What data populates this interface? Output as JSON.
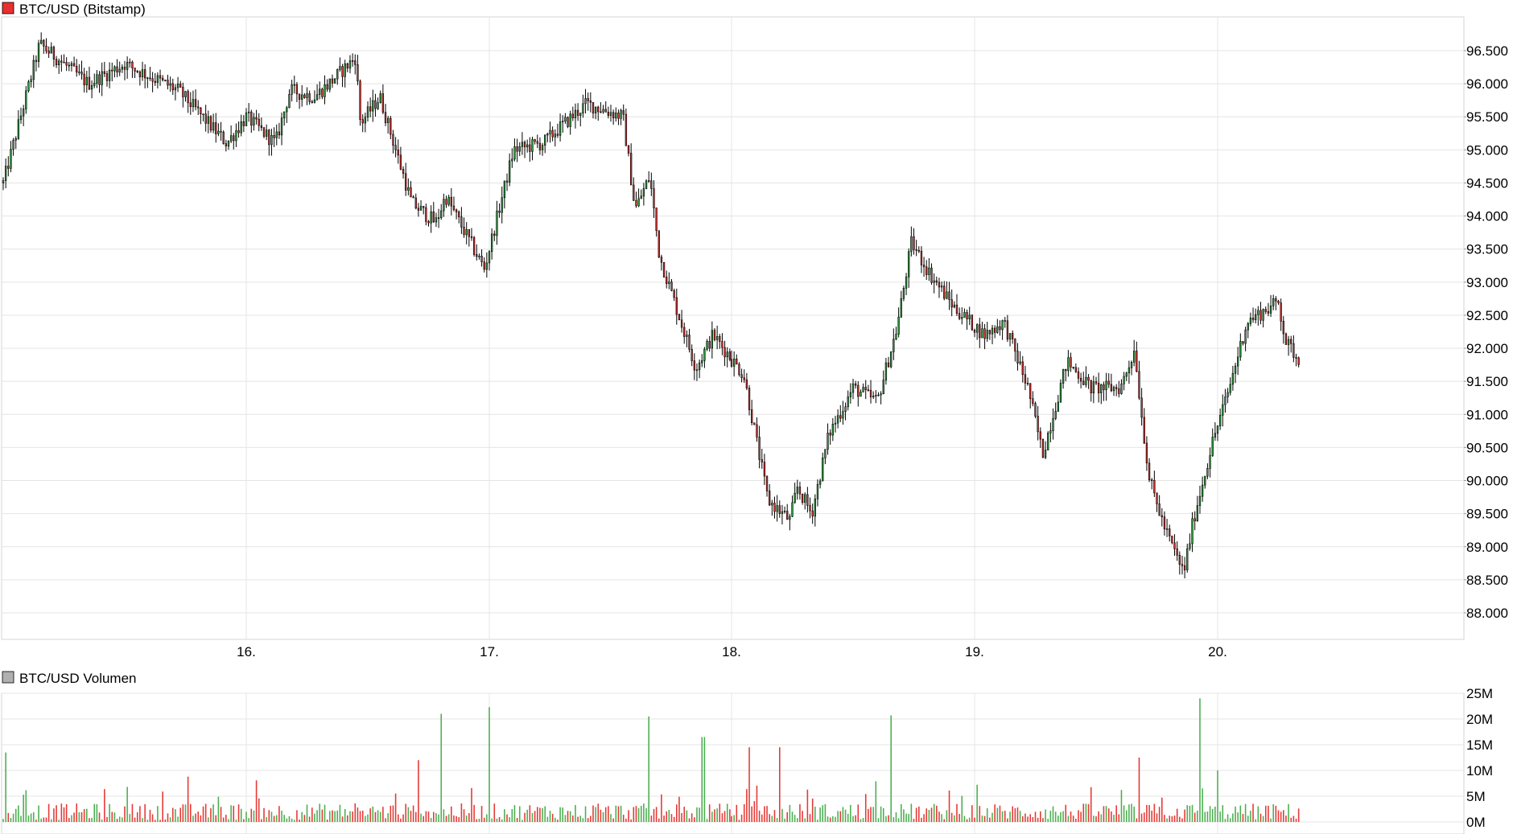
{
  "chart_data": [
    {
      "type": "candlestick",
      "title": "BTC/USD (Bitstamp)",
      "legend_color": "#e8302f",
      "x_tick_labels": [
        "16.",
        "17.",
        "18.",
        "19.",
        "20."
      ],
      "y_tick_labels": [
        "88.000",
        "88.500",
        "89.000",
        "89.500",
        "90.000",
        "90.500",
        "91.000",
        "91.500",
        "92.000",
        "92.500",
        "93.000",
        "93.500",
        "94.000",
        "94.500",
        "95.000",
        "95.500",
        "96.000",
        "96.500"
      ],
      "ylim": [
        87600,
        97400
      ],
      "grid": true,
      "series": [
        {
          "days": [
            15.0,
            15.15,
            15.35,
            15.5,
            15.72,
            15.92,
            16.0,
            16.12,
            16.18,
            16.28,
            16.34,
            16.45,
            16.47,
            16.55,
            16.68,
            16.78,
            16.82,
            16.98,
            17.1,
            17.22,
            17.4,
            17.55,
            17.6,
            17.66,
            17.7,
            17.85,
            17.92,
            18.05,
            18.15,
            18.24,
            18.27,
            18.33,
            18.4,
            18.5,
            18.6,
            18.68,
            18.74,
            18.82,
            18.92,
            19.04,
            19.12,
            19.22,
            19.28,
            19.38,
            19.48,
            19.6,
            19.66,
            19.68,
            19.72,
            19.78,
            19.86,
            19.9,
            19.98,
            20.04,
            20.12,
            20.25,
            20.28,
            20.34
          ],
          "close": [
            94500,
            96600,
            96000,
            96300,
            95900,
            95100,
            95500,
            95100,
            95900,
            95800,
            96000,
            96400,
            95400,
            95800,
            94200,
            93900,
            94300,
            93200,
            95000,
            95100,
            95700,
            95500,
            94100,
            94600,
            93400,
            91700,
            92200,
            91600,
            89700,
            89400,
            89900,
            89500,
            90700,
            91400,
            91200,
            92300,
            93600,
            93100,
            92600,
            92200,
            92400,
            91400,
            90400,
            91800,
            91400,
            91400,
            92000,
            91200,
            90000,
            89300,
            88600,
            89400,
            90600,
            91300,
            92400,
            92700,
            92100,
            91800
          ]
        }
      ]
    },
    {
      "type": "bar",
      "title": "BTC/USD Volumen",
      "legend_color": "#b0b0b0",
      "y_tick_labels": [
        "0M",
        "5M",
        "10M",
        "15M",
        "20M",
        "25M"
      ],
      "ylim": [
        0,
        25
      ],
      "unit": "M",
      "up_color": "#4caf50",
      "down_color": "#e53935",
      "series": [
        {
          "spikes": [
            {
              "day": 15.01,
              "value": 13.5
            },
            {
              "day": 15.76,
              "value": 8.8
            },
            {
              "day": 16.71,
              "value": 12
            },
            {
              "day": 16.8,
              "value": 21
            },
            {
              "day": 17.0,
              "value": 22.3
            },
            {
              "day": 17.66,
              "value": 20.5
            },
            {
              "day": 17.88,
              "value": 16.5
            },
            {
              "day": 18.07,
              "value": 14.5
            },
            {
              "day": 18.2,
              "value": 14.5
            },
            {
              "day": 18.66,
              "value": 20.7
            },
            {
              "day": 19.68,
              "value": 12.5
            },
            {
              "day": 19.93,
              "value": 24
            },
            {
              "day": 20.0,
              "value": 10
            }
          ]
        }
      ]
    }
  ]
}
